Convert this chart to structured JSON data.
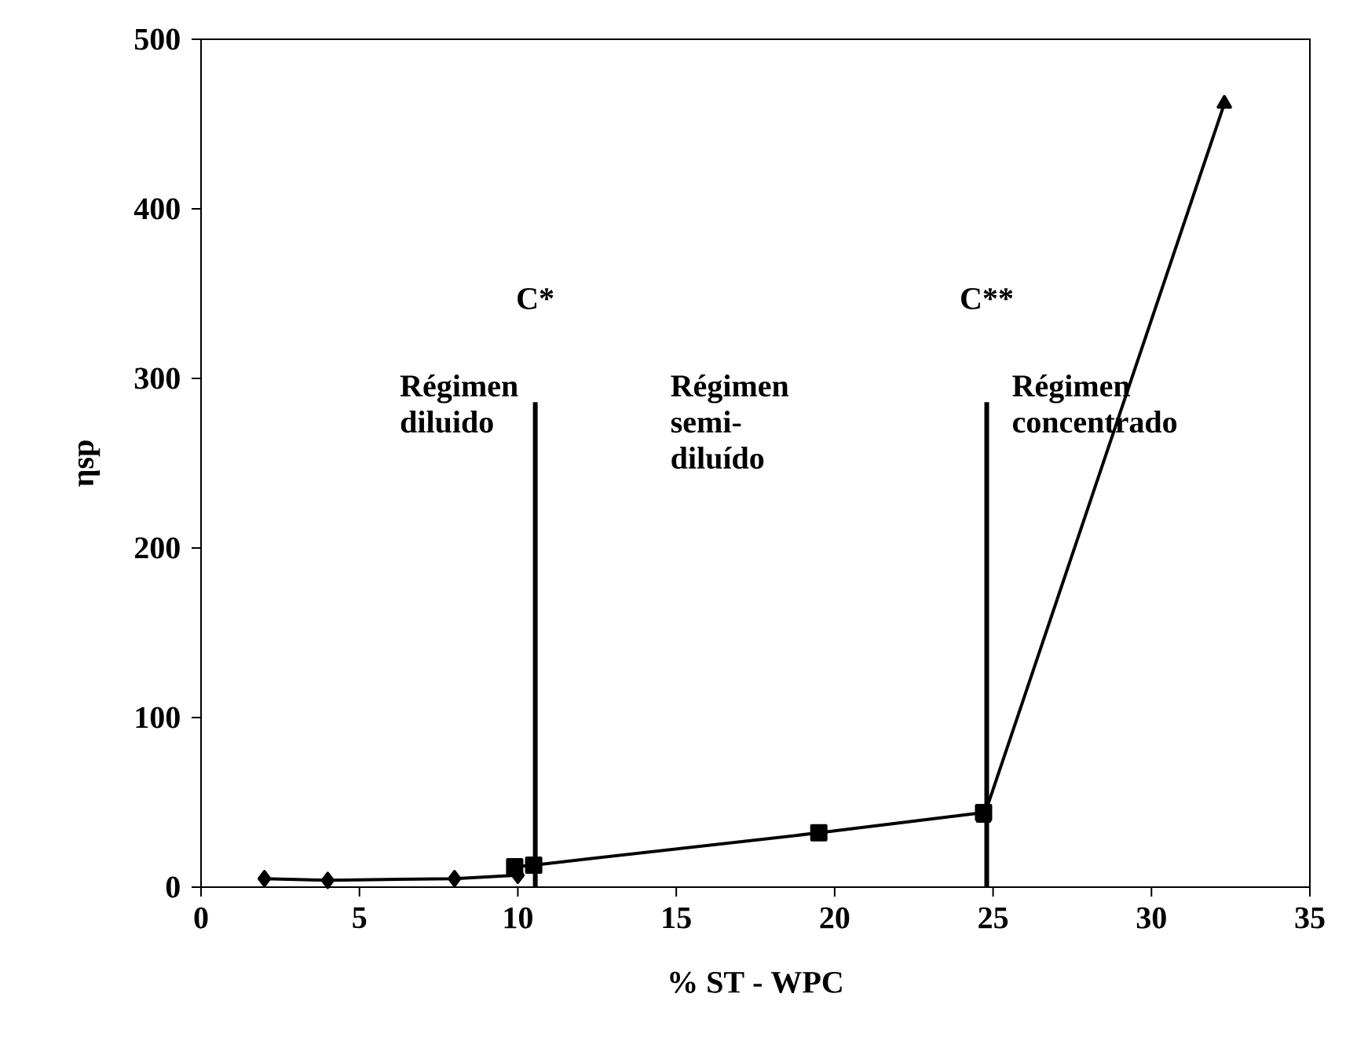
{
  "chart_data": {
    "type": "line",
    "xlabel": "% ST - WPC",
    "ylabel": "ηsp",
    "xlim": [
      0,
      35
    ],
    "ylim": [
      0,
      500
    ],
    "xticks": [
      0,
      5,
      10,
      15,
      20,
      25,
      30,
      35
    ],
    "yticks": [
      0,
      100,
      200,
      300,
      400,
      500
    ],
    "grid": false,
    "series": [
      {
        "color": "#000000",
        "marker": "diamond",
        "x": [
          2,
          4,
          8,
          10
        ],
        "values": [
          5,
          4,
          5,
          7
        ]
      },
      {
        "color": "#000000",
        "marker": "square",
        "x": [
          9.9,
          10.5,
          19.5,
          24.7
        ],
        "values": [
          12,
          13,
          32,
          44
        ]
      },
      {
        "color": "#000000",
        "marker": "triangle",
        "x": [
          24.7,
          32.3
        ],
        "values": [
          41,
          462
        ]
      },
      {
        "color": "#000000",
        "marker": "none",
        "x": [
          10.55,
          10.55
        ],
        "values": [
          0,
          286
        ]
      },
      {
        "color": "#000000",
        "marker": "none",
        "x": [
          24.8,
          24.8
        ],
        "values": [
          0,
          286
        ]
      }
    ],
    "annotations": [
      "C*",
      "C**",
      "Régimen diluido",
      "Régimen semi-diluído",
      "Régimen concentrado"
    ]
  }
}
